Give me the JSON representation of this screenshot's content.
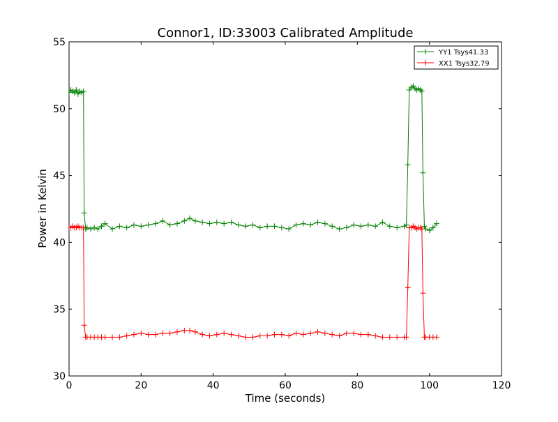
{
  "chart_data": {
    "type": "line",
    "title": "Connor1, ID:33003 Calibrated Amplitude",
    "xlabel": "Time (seconds)",
    "ylabel": "Power in Kelvin",
    "xlim": [
      0,
      120
    ],
    "ylim": [
      30,
      55
    ],
    "xticks": [
      "0",
      "20",
      "40",
      "60",
      "80",
      "100",
      "120"
    ],
    "yticks": [
      "30",
      "35",
      "40",
      "45",
      "50",
      "55"
    ],
    "legend_position": "top-right",
    "grid": false,
    "marker": "plus",
    "series": [
      {
        "name": "YY1 Tsys41.33",
        "color": "#008000",
        "x": [
          0.0,
          0.5,
          1.0,
          1.5,
          2.0,
          2.5,
          3.0,
          3.5,
          4.0,
          4.2,
          4.6,
          5.0,
          6.0,
          7.0,
          8.0,
          9.0,
          10.0,
          12.0,
          14.0,
          16.0,
          18.0,
          20.0,
          22.0,
          24.0,
          26.0,
          28.0,
          30.0,
          32.0,
          33.5,
          35.0,
          37.0,
          39.0,
          41.0,
          43.0,
          45.0,
          47.0,
          49.0,
          51.0,
          53.0,
          55.0,
          57.0,
          59.0,
          61.0,
          63.0,
          65.0,
          67.0,
          69.0,
          71.0,
          73.0,
          75.0,
          77.0,
          79.0,
          81.0,
          83.0,
          85.0,
          87.0,
          89.0,
          91.0,
          93.0,
          93.6,
          94.0,
          94.4,
          95.0,
          95.5,
          96.0,
          96.5,
          97.0,
          97.5,
          97.9,
          98.2,
          98.6,
          99.0,
          100.0,
          101.0,
          102.0
        ],
        "y": [
          51.2,
          51.4,
          51.3,
          51.2,
          51.4,
          51.1,
          51.3,
          51.2,
          51.3,
          42.2,
          41.0,
          41.1,
          41.0,
          41.1,
          41.0,
          41.2,
          41.4,
          41.0,
          41.2,
          41.1,
          41.3,
          41.2,
          41.3,
          41.4,
          41.6,
          41.3,
          41.4,
          41.6,
          41.8,
          41.6,
          41.5,
          41.4,
          41.5,
          41.4,
          41.5,
          41.3,
          41.2,
          41.3,
          41.1,
          41.2,
          41.2,
          41.1,
          41.0,
          41.3,
          41.4,
          41.3,
          41.5,
          41.4,
          41.2,
          41.0,
          41.1,
          41.3,
          41.2,
          41.3,
          41.2,
          41.5,
          41.2,
          41.1,
          41.2,
          41.3,
          45.8,
          51.4,
          51.6,
          51.7,
          51.5,
          51.4,
          51.5,
          51.4,
          51.3,
          45.2,
          41.2,
          41.0,
          40.9,
          41.1,
          41.4
        ]
      },
      {
        "name": "XX1 Tsys32.79",
        "color": "#ff0000",
        "x": [
          0.0,
          0.5,
          1.0,
          1.5,
          2.0,
          2.5,
          3.0,
          3.5,
          4.0,
          4.2,
          4.6,
          5.0,
          6.0,
          7.0,
          8.0,
          9.0,
          10.0,
          12.0,
          14.0,
          16.0,
          18.0,
          20.0,
          22.0,
          24.0,
          26.0,
          28.0,
          30.0,
          32.0,
          33.5,
          35.0,
          37.0,
          39.0,
          41.0,
          43.0,
          45.0,
          47.0,
          49.0,
          51.0,
          53.0,
          55.0,
          57.0,
          59.0,
          61.0,
          63.0,
          65.0,
          67.0,
          69.0,
          71.0,
          73.0,
          75.0,
          77.0,
          79.0,
          81.0,
          83.0,
          85.0,
          87.0,
          89.0,
          91.0,
          93.0,
          93.6,
          94.0,
          94.4,
          95.0,
          95.5,
          96.0,
          96.5,
          97.0,
          97.5,
          97.9,
          98.2,
          98.6,
          99.0,
          100.0,
          101.0,
          102.0
        ],
        "y": [
          41.1,
          41.1,
          41.2,
          41.1,
          41.1,
          41.2,
          41.1,
          41.1,
          41.1,
          33.8,
          32.9,
          32.9,
          32.9,
          32.9,
          32.9,
          32.9,
          32.9,
          32.9,
          32.9,
          33.0,
          33.1,
          33.2,
          33.1,
          33.1,
          33.2,
          33.2,
          33.3,
          33.4,
          33.4,
          33.3,
          33.1,
          33.0,
          33.1,
          33.2,
          33.1,
          33.0,
          32.9,
          32.9,
          33.0,
          33.0,
          33.1,
          33.1,
          33.0,
          33.2,
          33.1,
          33.2,
          33.3,
          33.2,
          33.1,
          33.0,
          33.2,
          33.2,
          33.1,
          33.1,
          33.0,
          32.9,
          32.9,
          32.9,
          32.9,
          32.9,
          36.6,
          41.1,
          41.1,
          41.2,
          41.1,
          41.0,
          41.1,
          41.1,
          41.0,
          36.2,
          32.9,
          32.9,
          32.9,
          32.9,
          32.9
        ]
      }
    ]
  }
}
